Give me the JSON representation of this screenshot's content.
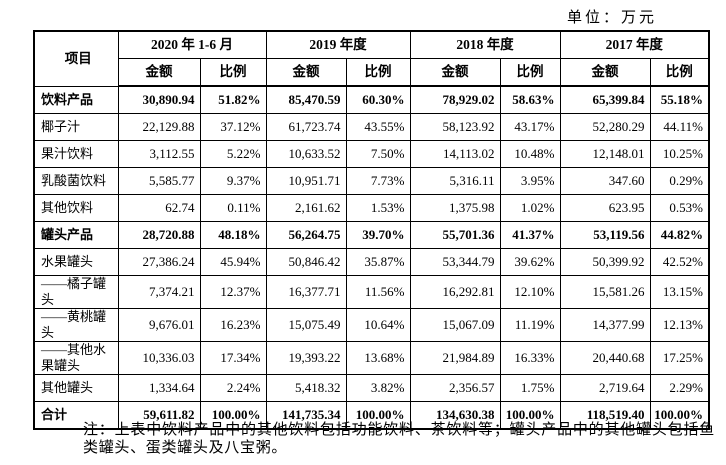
{
  "unit_label": "单位：万元",
  "table": {
    "item_header": "项目",
    "period_headers": [
      "2020 年 1-6 月",
      "2019 年度",
      "2018 年度",
      "2017 年度"
    ],
    "amount_header": "金额",
    "ratio_header": "比例",
    "rows": [
      {
        "label": "饮料产品",
        "bold": true,
        "values": [
          "30,890.94",
          "51.82%",
          "85,470.59",
          "60.30%",
          "78,929.02",
          "58.63%",
          "65,399.84",
          "55.18%"
        ]
      },
      {
        "label": "椰子汁",
        "bold": false,
        "values": [
          "22,129.88",
          "37.12%",
          "61,723.74",
          "43.55%",
          "58,123.92",
          "43.17%",
          "52,280.29",
          "44.11%"
        ]
      },
      {
        "label": "果汁饮料",
        "bold": false,
        "values": [
          "3,112.55",
          "5.22%",
          "10,633.52",
          "7.50%",
          "14,113.02",
          "10.48%",
          "12,148.01",
          "10.25%"
        ]
      },
      {
        "label": "乳酸菌饮料",
        "bold": false,
        "values": [
          "5,585.77",
          "9.37%",
          "10,951.71",
          "7.73%",
          "5,316.11",
          "3.95%",
          "347.60",
          "0.29%"
        ]
      },
      {
        "label": "其他饮料",
        "bold": false,
        "values": [
          "62.74",
          "0.11%",
          "2,161.62",
          "1.53%",
          "1,375.98",
          "1.02%",
          "623.95",
          "0.53%"
        ]
      },
      {
        "label": "罐头产品",
        "bold": true,
        "values": [
          "28,720.88",
          "48.18%",
          "56,264.75",
          "39.70%",
          "55,701.36",
          "41.37%",
          "53,119.56",
          "44.82%"
        ]
      },
      {
        "label": "水果罐头",
        "bold": false,
        "values": [
          "27,386.24",
          "45.94%",
          "50,846.42",
          "35.87%",
          "53,344.79",
          "39.62%",
          "50,399.92",
          "42.52%"
        ]
      },
      {
        "label": "——橘子罐头",
        "bold": false,
        "values": [
          "7,374.21",
          "12.37%",
          "16,377.71",
          "11.56%",
          "16,292.81",
          "12.10%",
          "15,581.26",
          "13.15%"
        ]
      },
      {
        "label": "——黄桃罐头",
        "bold": false,
        "values": [
          "9,676.01",
          "16.23%",
          "15,075.49",
          "10.64%",
          "15,067.09",
          "11.19%",
          "14,377.99",
          "12.13%"
        ]
      },
      {
        "label": "——其他水果罐头",
        "bold": false,
        "values": [
          "10,336.03",
          "17.34%",
          "19,393.22",
          "13.68%",
          "21,984.89",
          "16.33%",
          "20,440.68",
          "17.25%"
        ]
      },
      {
        "label": "其他罐头",
        "bold": false,
        "values": [
          "1,334.64",
          "2.24%",
          "5,418.32",
          "3.82%",
          "2,356.57",
          "1.75%",
          "2,719.64",
          "2.29%"
        ]
      },
      {
        "label": "合计",
        "bold": true,
        "values": [
          "59,611.82",
          "100.00%",
          "141,735.34",
          "100.00%",
          "134,630.38",
          "100.00%",
          "118,519.40",
          "100.00%"
        ]
      }
    ]
  },
  "note": "注：上表中饮料产品中的其他饮料包括功能饮料、茶饮料等；罐头产品中的其他罐头包括鱼类罐头、蛋类罐头及八宝粥。"
}
